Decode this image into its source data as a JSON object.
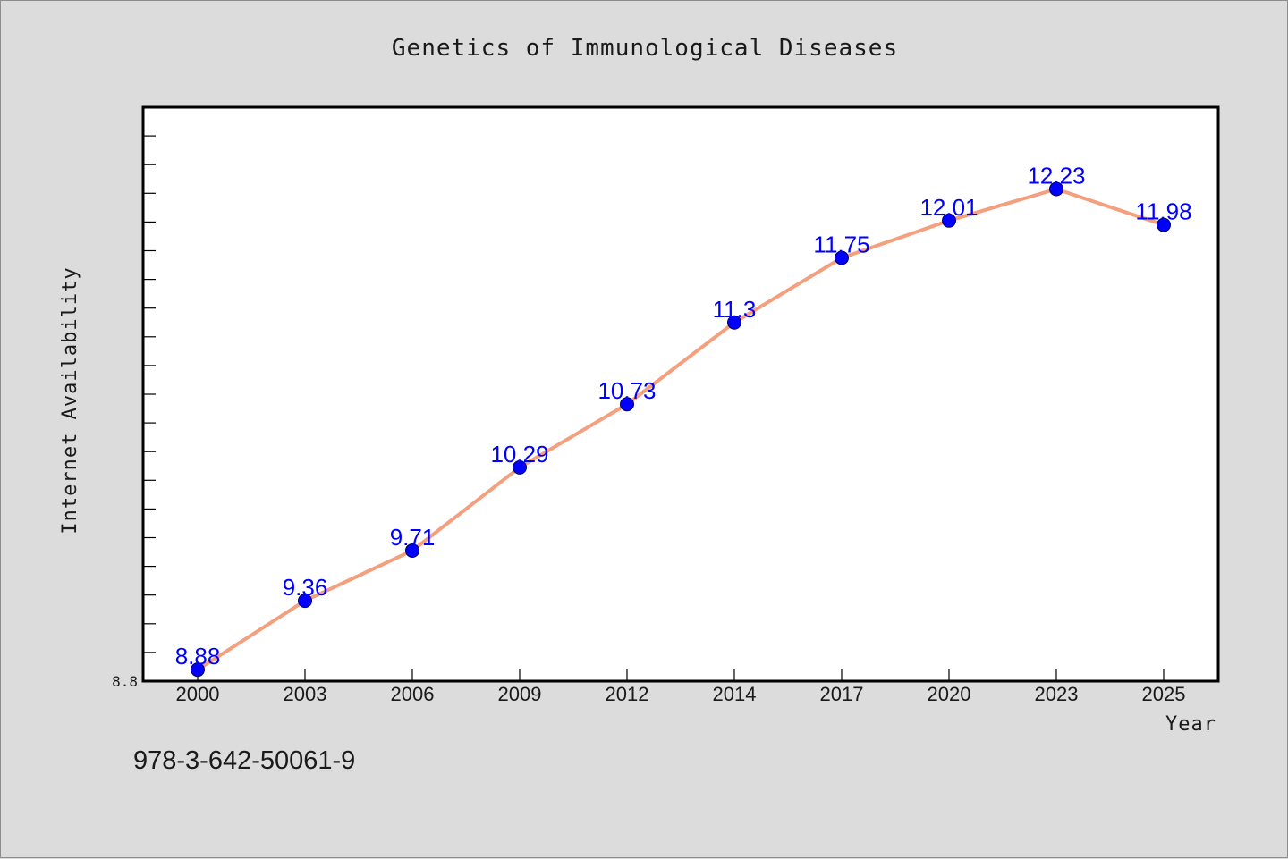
{
  "chart_data": {
    "type": "line",
    "title": "Genetics of Immunological Diseases",
    "xlabel": "Year",
    "ylabel": "Internet Availability",
    "categories": [
      "2000",
      "2003",
      "2006",
      "2009",
      "2012",
      "2014",
      "2017",
      "2020",
      "2023",
      "2025"
    ],
    "series": [
      {
        "values": [
          8.88,
          9.36,
          9.71,
          10.29,
          10.73,
          11.3,
          11.75,
          12.01,
          12.23,
          11.98
        ],
        "data_labels": [
          "8.88",
          "9.36",
          "9.71",
          "10.29",
          "10.73",
          "11.3",
          "11.75",
          "12.01",
          "12.23",
          "11.98"
        ]
      }
    ],
    "ylim": [
      8.8,
      12.8
    ],
    "y_tick_labels": [
      "8.8"
    ],
    "grid": false,
    "legend": "none",
    "colors": {
      "line": "#f4a07e",
      "marker": "#0000ff",
      "data_label": "#0000ff",
      "plot_background": "#ffffff",
      "figure_background": "#dcdcdc"
    }
  },
  "footer": {
    "isbn": "978-3-642-50061-9"
  }
}
